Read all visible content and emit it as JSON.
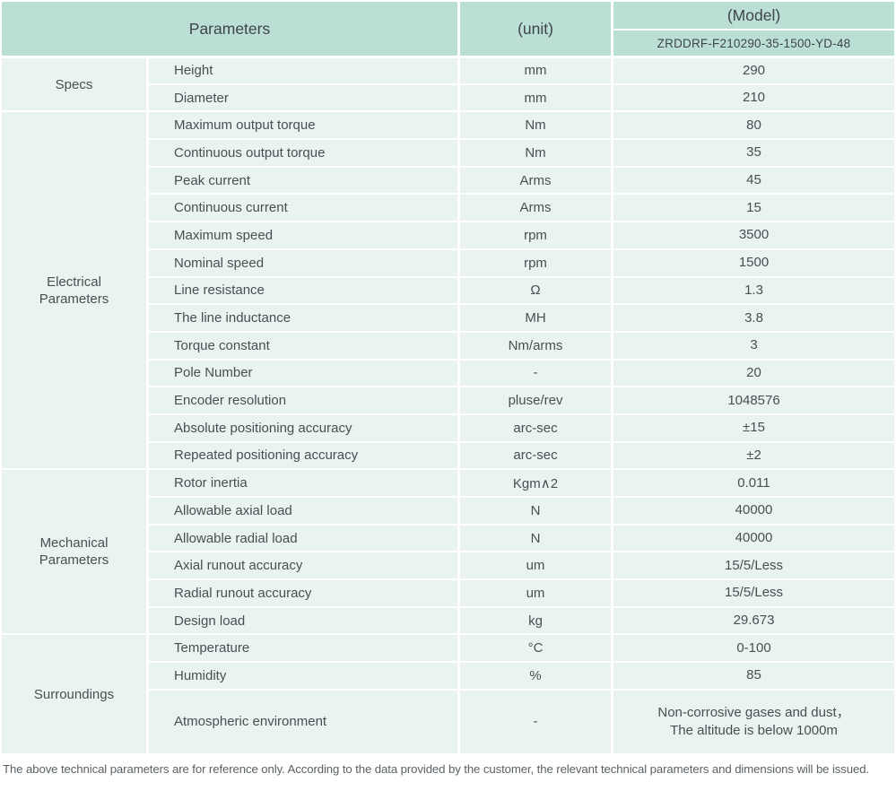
{
  "header": {
    "parameters_label": "Parameters",
    "unit_label": "(unit)",
    "model_label": "(Model)",
    "model_value": "ZRDDRF-F210290-35-1500-YD-48"
  },
  "table": {
    "groups": [
      {
        "label": "Specs",
        "rows": [
          {
            "name": "Height",
            "unit": "mm",
            "value": "290"
          },
          {
            "name": "Diameter",
            "unit": "mm",
            "value": "210"
          }
        ]
      },
      {
        "label": "Electrical Parameters",
        "rows": [
          {
            "name": "Maximum output torque",
            "unit": "Nm",
            "value": "80"
          },
          {
            "name": "Continuous output torque",
            "unit": "Nm",
            "value": "35"
          },
          {
            "name": "Peak current",
            "unit": "Arms",
            "value": "45"
          },
          {
            "name": "Continuous current",
            "unit": "Arms",
            "value": "15"
          },
          {
            "name": "Maximum speed",
            "unit": "rpm",
            "value": "3500"
          },
          {
            "name": "Nominal speed",
            "unit": "rpm",
            "value": "1500"
          },
          {
            "name": "Line resistance",
            "unit": "Ω",
            "value": "1.3"
          },
          {
            "name": "The line inductance",
            "unit": "MH",
            "value": "3.8"
          },
          {
            "name": "Torque constant",
            "unit": "Nm/arms",
            "value": "3"
          },
          {
            "name": "Pole Number",
            "unit": "-",
            "value": "20"
          },
          {
            "name": "Encoder resolution",
            "unit": "pluse/rev",
            "value": "1048576"
          },
          {
            "name": "Absolute positioning accuracy",
            "unit": "arc-sec",
            "value": "±15"
          },
          {
            "name": "Repeated positioning accuracy",
            "unit": "arc-sec",
            "value": "±2"
          }
        ]
      },
      {
        "label": "Mechanical Parameters",
        "rows": [
          {
            "name": "Rotor inertia",
            "unit": "Kgm∧2",
            "value": "0.011"
          },
          {
            "name": "Allowable axial load",
            "unit": "N",
            "value": "40000"
          },
          {
            "name": "Allowable radial load",
            "unit": "N",
            "value": "40000"
          },
          {
            "name": "Axial runout accuracy",
            "unit": "um",
            "value": "15/5/Less"
          },
          {
            "name": "Radial runout accuracy",
            "unit": "um",
            "value": "15/5/Less"
          },
          {
            "name": "Design load",
            "unit": "kg",
            "value": "29.673"
          }
        ]
      },
      {
        "label": "Surroundings",
        "rows": [
          {
            "name": "Temperature",
            "unit": "°C",
            "value": "0-100"
          },
          {
            "name": "Humidity",
            "unit": "%",
            "value": "85"
          },
          {
            "name": "Atmospheric environment",
            "unit": "-",
            "value": "Non-corrosive gases and dust，\nThe altitude is below 1000m",
            "tall": true
          }
        ]
      }
    ]
  },
  "footer": {
    "note": "The above technical parameters are for reference only. According to the data provided by the customer, the relevant technical parameters and dimensions will be issued."
  },
  "colors": {
    "header_bg": "#bcdfd5",
    "row_bg": "#e9f4f1",
    "separator": "#ffffff"
  }
}
